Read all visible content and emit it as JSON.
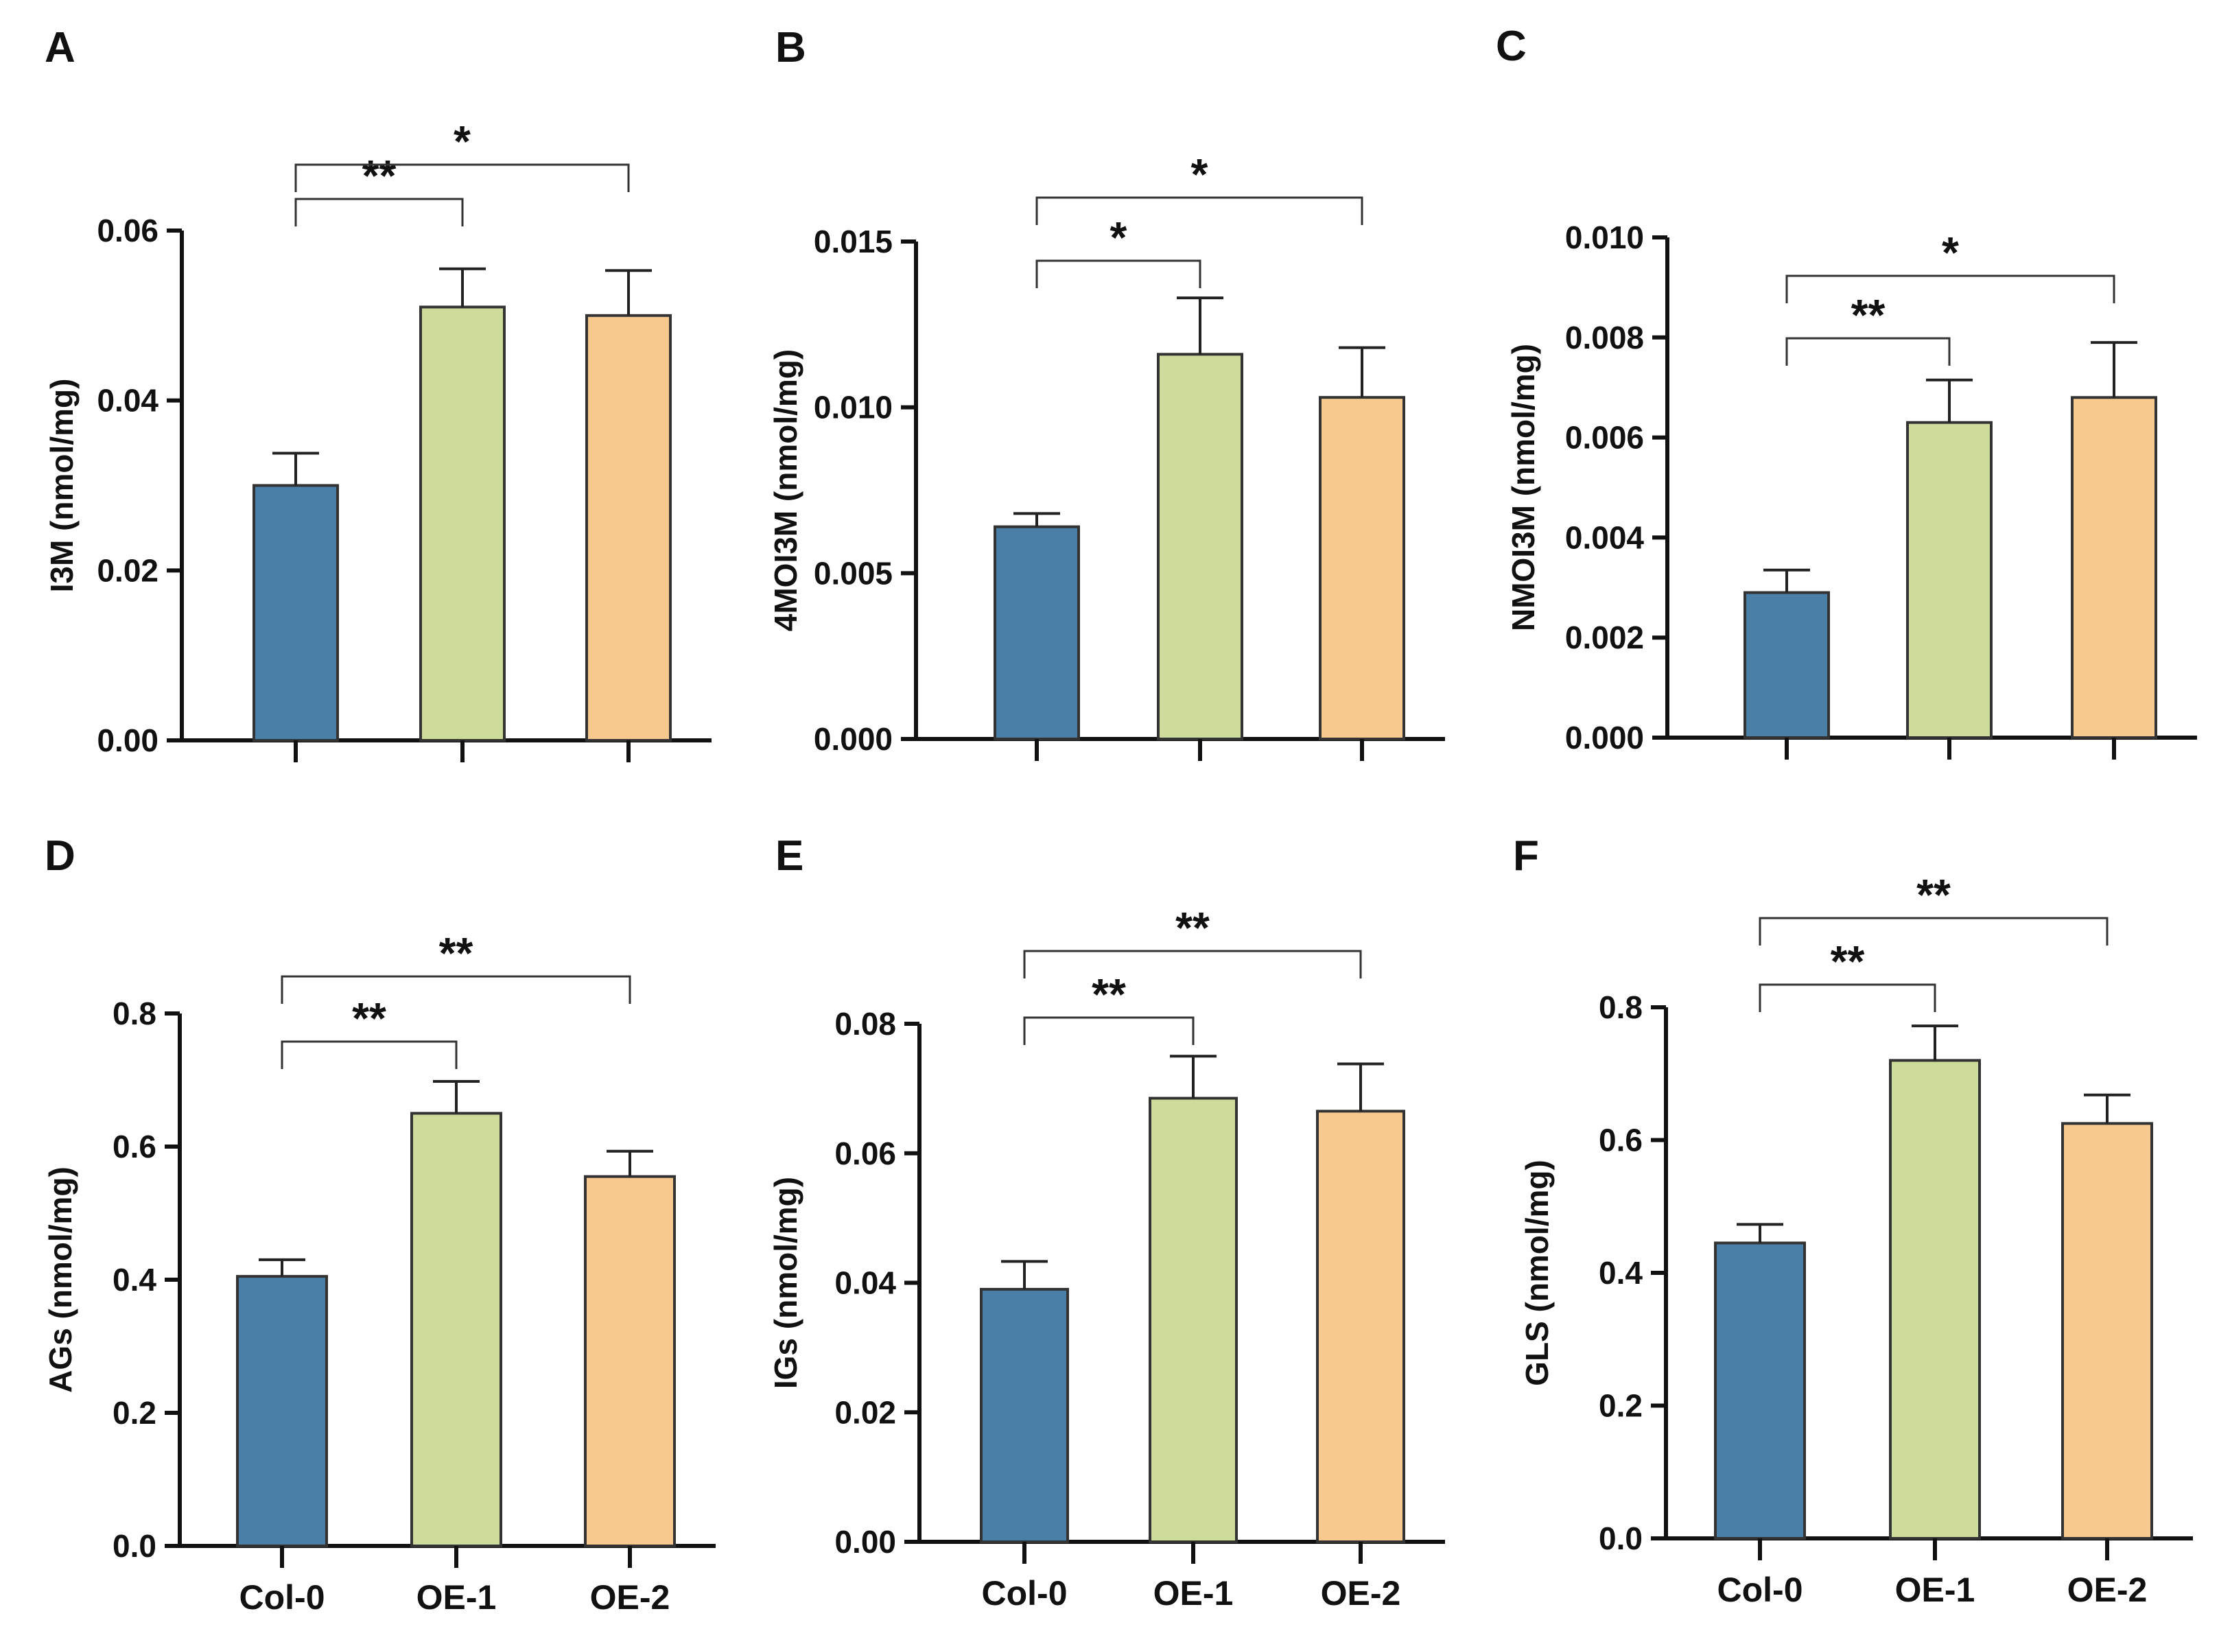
{
  "figure": {
    "categories": [
      "Col-0",
      "OE-1",
      "OE-2"
    ],
    "bar_colors": [
      "#4a7fa7",
      "#cddc9a",
      "#f7c98e"
    ],
    "bar_stroke": "#333333"
  },
  "chart_data": [
    {
      "panel": "A",
      "type": "bar",
      "ylabel": "I3M (nmol/mg)",
      "categories": [
        "Col-0",
        "OE-1",
        "OE-2"
      ],
      "values": [
        0.03,
        0.051,
        0.05
      ],
      "errors": [
        0.0038,
        0.0045,
        0.0053
      ],
      "ylim": [
        0,
        0.06
      ],
      "yticks": [
        0,
        0.02,
        0.04,
        0.06
      ],
      "ytick_labels": [
        "0.00",
        "0.02",
        "0.04",
        "0.06"
      ],
      "show_category_labels": false,
      "significance": [
        {
          "from": 0,
          "to": 1,
          "label": "**"
        },
        {
          "from": 0,
          "to": 2,
          "label": "*"
        }
      ]
    },
    {
      "panel": "B",
      "type": "bar",
      "ylabel": "4MOI3M (nmol/mg)",
      "categories": [
        "Col-0",
        "OE-1",
        "OE-2"
      ],
      "values": [
        0.0064,
        0.0116,
        0.0103
      ],
      "errors": [
        0.0004,
        0.0017,
        0.0015
      ],
      "ylim": [
        0,
        0.015
      ],
      "yticks": [
        0,
        0.005,
        0.01,
        0.015
      ],
      "ytick_labels": [
        "0.000",
        "0.005",
        "0.010",
        "0.015"
      ],
      "show_category_labels": false,
      "significance": [
        {
          "from": 0,
          "to": 1,
          "label": "*"
        },
        {
          "from": 0,
          "to": 2,
          "label": "*"
        }
      ]
    },
    {
      "panel": "C",
      "type": "bar",
      "ylabel": "NMOI3M (nmol/mg)",
      "categories": [
        "Col-0",
        "OE-1",
        "OE-2"
      ],
      "values": [
        0.0029,
        0.0063,
        0.0068
      ],
      "errors": [
        0.00045,
        0.00085,
        0.0011
      ],
      "ylim": [
        0,
        0.01
      ],
      "yticks": [
        0,
        0.002,
        0.004,
        0.006,
        0.008,
        0.01
      ],
      "ytick_labels": [
        "0.000",
        "0.002",
        "0.004",
        "0.006",
        "0.008",
        "0.010"
      ],
      "show_category_labels": false,
      "significance": [
        {
          "from": 0,
          "to": 1,
          "label": "**"
        },
        {
          "from": 0,
          "to": 2,
          "label": "*"
        }
      ]
    },
    {
      "panel": "D",
      "type": "bar",
      "ylabel": "AGs (nmol/mg)",
      "categories": [
        "Col-0",
        "OE-1",
        "OE-2"
      ],
      "values": [
        0.405,
        0.65,
        0.555
      ],
      "errors": [
        0.025,
        0.048,
        0.038
      ],
      "ylim": [
        0,
        0.8
      ],
      "yticks": [
        0,
        0.2,
        0.4,
        0.6,
        0.8
      ],
      "ytick_labels": [
        "0.0",
        "0.2",
        "0.4",
        "0.6",
        "0.8"
      ],
      "show_category_labels": true,
      "significance": [
        {
          "from": 0,
          "to": 1,
          "label": "**"
        },
        {
          "from": 0,
          "to": 2,
          "label": "**"
        }
      ]
    },
    {
      "panel": "E",
      "type": "bar",
      "ylabel": "IGs (nmol/mg)",
      "categories": [
        "Col-0",
        "OE-1",
        "OE-2"
      ],
      "values": [
        0.039,
        0.0685,
        0.0665
      ],
      "errors": [
        0.0043,
        0.0065,
        0.0073
      ],
      "ylim": [
        0,
        0.08
      ],
      "yticks": [
        0,
        0.02,
        0.04,
        0.06,
        0.08
      ],
      "ytick_labels": [
        "0.00",
        "0.02",
        "0.04",
        "0.06",
        "0.08"
      ],
      "show_category_labels": true,
      "significance": [
        {
          "from": 0,
          "to": 1,
          "label": "**"
        },
        {
          "from": 0,
          "to": 2,
          "label": "**"
        }
      ]
    },
    {
      "panel": "F",
      "type": "bar",
      "ylabel": "GLS (nmol/mg)",
      "categories": [
        "Col-0",
        "OE-1",
        "OE-2"
      ],
      "values": [
        0.445,
        0.72,
        0.625
      ],
      "errors": [
        0.028,
        0.052,
        0.043
      ],
      "ylim": [
        0,
        0.8
      ],
      "yticks": [
        0,
        0.2,
        0.4,
        0.6,
        0.8
      ],
      "ytick_labels": [
        "0.0",
        "0.2",
        "0.4",
        "0.6",
        "0.8"
      ],
      "show_category_labels": true,
      "significance": [
        {
          "from": 0,
          "to": 1,
          "label": "**"
        },
        {
          "from": 0,
          "to": 2,
          "label": "**"
        }
      ]
    }
  ]
}
